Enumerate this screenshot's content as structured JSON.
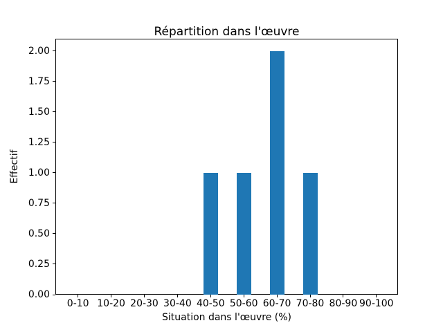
{
  "chart_data": {
    "type": "bar",
    "title": "Répartition dans l'œuvre",
    "xlabel": "Situation dans l'œuvre (%)",
    "ylabel": "Effectif",
    "categories": [
      "0-10",
      "10-20",
      "20-30",
      "30-40",
      "40-50",
      "50-60",
      "60-70",
      "70-80",
      "80-90",
      "90-100"
    ],
    "values": [
      0,
      0,
      0,
      0,
      1,
      1,
      2,
      1,
      0,
      0
    ],
    "yticks": [
      0,
      0.25,
      0.5,
      0.75,
      1,
      1.25,
      1.5,
      1.75,
      2
    ],
    "ytick_labels": [
      "0.00",
      "0.25",
      "0.50",
      "0.75",
      "1.00",
      "1.25",
      "1.50",
      "1.75",
      "2.00"
    ],
    "ylim": [
      0,
      2.1
    ],
    "grid": false,
    "legend": null,
    "bar_color": "#1f77b4",
    "frame_color": "#000000",
    "background_color": "#ffffff"
  }
}
